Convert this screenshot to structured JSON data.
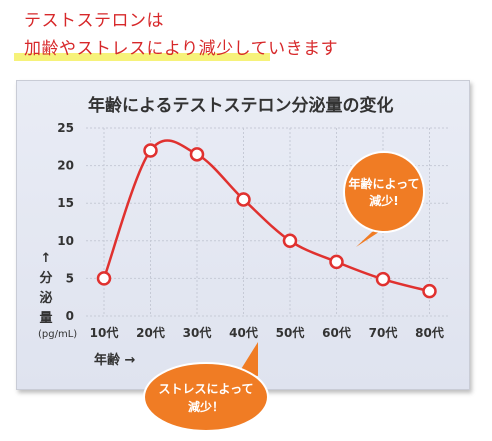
{
  "heading": {
    "line1": "テストステロンは",
    "line2": "加齢やストレスにより減少していきます"
  },
  "callouts": {
    "age_line1": "年齢によって",
    "age_line2": "減少!",
    "stress_line1": "ストレスによって",
    "stress_line2": "減少！"
  },
  "colors": {
    "heading": "#d7282a",
    "line": "#e0312f",
    "callout": "#f07c24",
    "panel": "#e6e9f2"
  },
  "chart_data": {
    "type": "line",
    "title": "年齢によるテストステロン分泌量の変化",
    "xlabel": "年齢 →",
    "ylabel": [
      "↑",
      "分",
      "泌",
      "量"
    ],
    "yunit": "(pg/mL)",
    "categories": [
      "10代",
      "20代",
      "30代",
      "40代",
      "50代",
      "60代",
      "70代",
      "80代"
    ],
    "yticks": [
      "25",
      "20",
      "15",
      "10",
      "5",
      "0"
    ],
    "ylim": [
      0,
      25
    ],
    "grid": true,
    "series": [
      {
        "values": [
          5,
          22,
          21.5,
          15.5,
          10,
          7.2,
          4.9,
          3.3
        ]
      }
    ]
  }
}
